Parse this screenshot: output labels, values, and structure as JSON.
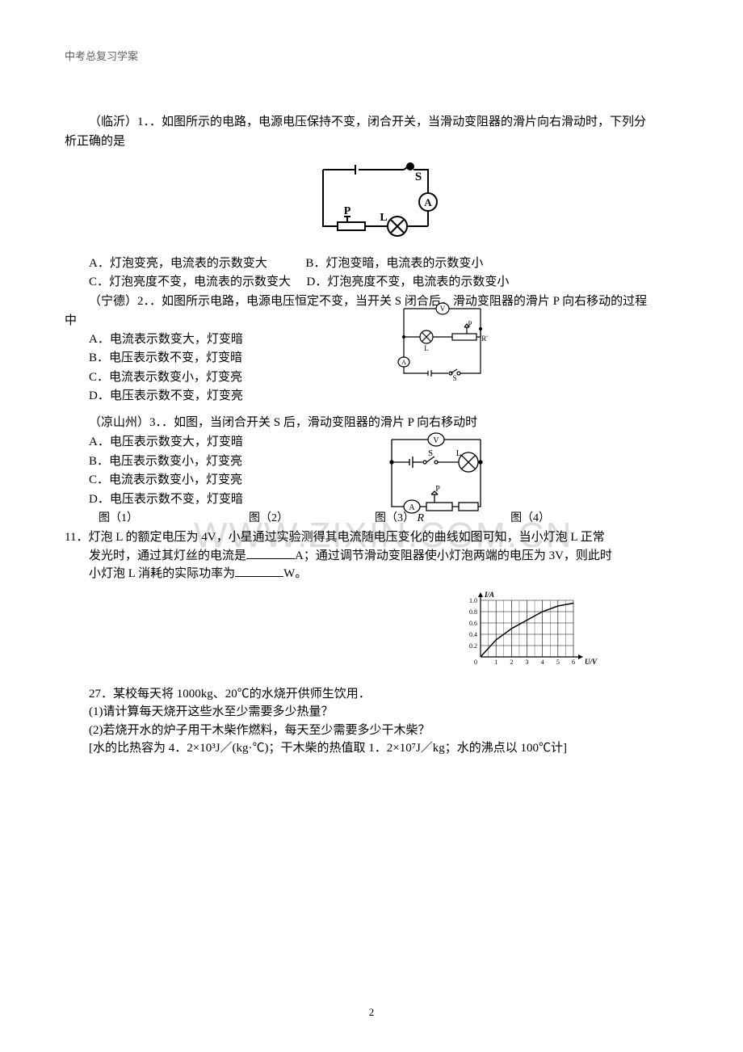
{
  "header": "中考总复习学案",
  "watermark": "WWW.ZIXIN.COM.CN",
  "page_number": "2",
  "questions": {
    "q1": {
      "stem1": "（临沂）1．．如图所示的电路，电源电压保持不变，闭合开关，当滑动变阻器的滑片向右滑动时，下列分",
      "stem2": "析正确的是",
      "options": {
        "A": "A．灯泡变亮，电流表的示数变大",
        "B": "B．灯泡变暗，电流表的示数变小",
        "C": "C．灯泡亮度不变，电流表的示数变大",
        "D": "D．灯泡亮度不变，电流表的示数变小"
      },
      "diagram": {
        "S": "S",
        "P": "P",
        "L": "L",
        "A": "A"
      }
    },
    "q2": {
      "stem1": "（宁德）2．．如图所示电路，电源电压恒定不变，当开关 S 闭合后，滑动变阻器的滑片 P 向右移动的过程",
      "stem2": "中",
      "options": {
        "A": "A．电流表示数变大，灯变暗",
        "B": "B．电压表示数不变，灯变暗",
        "C": "C．电流表示数变小，灯变亮",
        "D": "D．电压表示数不变，灯变亮"
      },
      "diagram": {
        "V": "V",
        "P": "P",
        "L": "L",
        "R": "R'",
        "A": "A",
        "S": "S"
      }
    },
    "q3": {
      "stem": "（凉山州）3．．如图，当闭合开关 S 后，滑动变阻器的滑片 P 向右移动时",
      "options": {
        "A": "A．电压表示数变大，灯变暗",
        "B": "B．电压表示数变小，灯变亮",
        "C": "C．电流表示数变小，灯变亮",
        "D": "D．电压表示数不变，灯变暗"
      },
      "diagram": {
        "V": "V",
        "S": "S",
        "L": "L",
        "A": "A",
        "P": "P",
        "R": "R"
      },
      "fig_labels": {
        "f1": "图（1）",
        "f2": "图（2）",
        "f3": "图（3）",
        "f3b": "R",
        "f4": "图（4）"
      }
    },
    "q11": {
      "line1": "11．灯泡 L 的额定电压为 4V，小星通过实验测得其电流随电压变化的曲线如图可知，当小灯泡 L 正常",
      "line2_a": "发光时，通过其灯丝的电流是",
      "line2_b": "A；通过调节滑动变阻器使小灯泡两端的电压为 3V，则此时",
      "line3_a": "小灯泡 L 消耗的实际功率为",
      "line3_b": "W。",
      "chart": {
        "type": "line",
        "ylabel": "I/A",
        "xlabel": "U/V",
        "xlim": [
          0,
          6
        ],
        "ylim": [
          0,
          1.0
        ],
        "xticks": [
          "0",
          "1",
          "2",
          "3",
          "4",
          "5",
          "6"
        ],
        "yticks": [
          "0",
          "0.2",
          "0.4",
          "0.6",
          "0.8",
          "1.0"
        ],
        "curve_points": [
          [
            0,
            0
          ],
          [
            1,
            0.3
          ],
          [
            2,
            0.5
          ],
          [
            3,
            0.65
          ],
          [
            4,
            0.8
          ],
          [
            5,
            0.9
          ],
          [
            6,
            0.95
          ]
        ],
        "grid_color": "#000000",
        "line_color": "#000000",
        "bg": "#ffffff",
        "axis_fontsize": 8
      }
    },
    "q27": {
      "stem": "27．某校每天将 1000kg、20℃的水烧开供师生饮用．",
      "sub1": "(1)请计算每天烧开这些水至少需要多少热量？",
      "sub2": "(2)若烧开水的炉子用干木柴作燃料，每天至少需要多少干木柴？",
      "note": "[水的比热容为 4．2×10³J／(kg·℃)；干木柴的热值取 1．2×10⁷J／kg；水的沸点以 100℃计]"
    }
  }
}
